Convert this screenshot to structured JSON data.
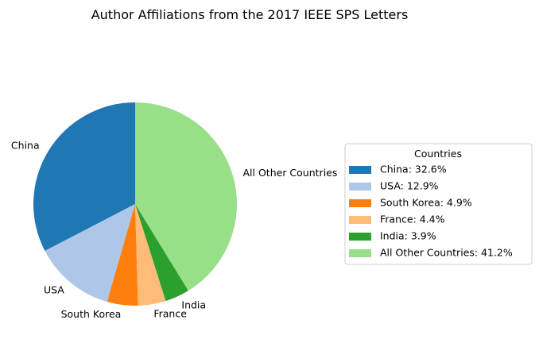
{
  "chart_data": {
    "type": "pie",
    "title": "Author Affiliations from the 2017 IEEE SPS Letters",
    "legend": {
      "title": "Countries",
      "placement": "center-right"
    },
    "slices": [
      {
        "label": "China",
        "value": 32.6,
        "legend_label": "China: 32.6%",
        "color": "#1f77b4"
      },
      {
        "label": "USA",
        "value": 12.9,
        "legend_label": "USA: 12.9%",
        "color": "#aec7e8"
      },
      {
        "label": "South Korea",
        "value": 4.9,
        "legend_label": "South Korea: 4.9%",
        "color": "#ff7f0e"
      },
      {
        "label": "France",
        "value": 4.4,
        "legend_label": "France: 4.4%",
        "color": "#ffbb78"
      },
      {
        "label": "India",
        "value": 3.9,
        "legend_label": "India: 3.9%",
        "color": "#2ca02c"
      },
      {
        "label": "All Other Countries",
        "value": 41.2,
        "legend_label": "All Other Countries: 41.2%",
        "color": "#98df8a"
      }
    ],
    "start_angle_deg": 90,
    "direction": "counterclockwise"
  }
}
